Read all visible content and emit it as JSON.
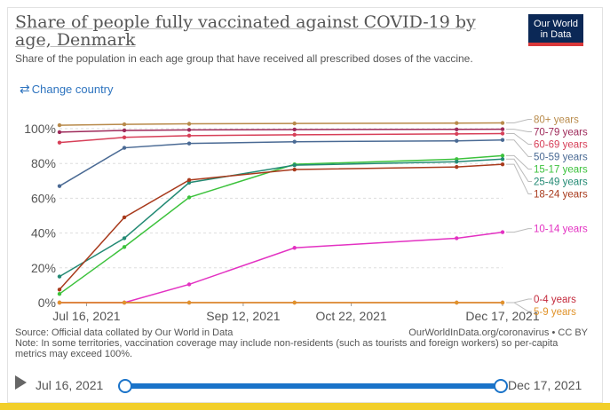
{
  "header": {
    "title": "Share of people fully vaccinated against COVID-19 by age, Denmark",
    "subtitle": "Share of the population in each age group that have received all prescribed doses of the vaccine.",
    "logo_line1": "Our World",
    "logo_line2": "in Data",
    "logo_color": "#0b2856",
    "logo_accent": "#d9383a"
  },
  "controls": {
    "change_country_icon": "swap-arrows-icon",
    "change_country_label": "Change country"
  },
  "chart_data": {
    "type": "line",
    "x": [
      "2021-07-06",
      "2021-07-30",
      "2021-08-23",
      "2021-10-01",
      "2021-11-30",
      "2021-12-17"
    ],
    "x_tick_labels": [
      {
        "date": "2021-07-16",
        "label": "Jul 16, 2021"
      },
      {
        "date": "2021-09-12",
        "label": "Sep 12, 2021"
      },
      {
        "date": "2021-10-22",
        "label": "Oct 22, 2021"
      },
      {
        "date": "2021-12-17",
        "label": "Dec 17, 2021"
      }
    ],
    "y_ticks": [
      "0%",
      "20%",
      "40%",
      "60%",
      "80%",
      "100%"
    ],
    "ylim": [
      0,
      100
    ],
    "grid": "horizontal dashed",
    "legend": "right, end-of-line labels",
    "series": [
      {
        "name": "80+ years",
        "color": "#b88a4a",
        "values": [
          102,
          102.5,
          102.8,
          103,
          103.2,
          103.3
        ]
      },
      {
        "name": "70-79 years",
        "color": "#9e2a5a",
        "values": [
          98,
          99,
          99.3,
          99.5,
          99.6,
          99.7
        ]
      },
      {
        "name": "60-69 years",
        "color": "#d73f58",
        "values": [
          92,
          95,
          96,
          96.5,
          97,
          97.2
        ]
      },
      {
        "name": "50-59 years",
        "color": "#4a6a94",
        "values": [
          67,
          89,
          91.5,
          92.5,
          93,
          93.5
        ]
      },
      {
        "name": "15-17 years",
        "color": "#3cc23c",
        "values": [
          5,
          32,
          60.5,
          79.5,
          82.5,
          84.5
        ]
      },
      {
        "name": "25-49 years",
        "color": "#238a74",
        "values": [
          15,
          37,
          69,
          79,
          81,
          82.5
        ]
      },
      {
        "name": "18-24 years",
        "color": "#a83a1c",
        "values": [
          7.5,
          49,
          70.5,
          76.5,
          78,
          79.5
        ]
      },
      {
        "name": "10-14 years",
        "color": "#e331c2",
        "values": [
          0,
          0,
          10.5,
          31.5,
          37,
          40.5
        ]
      },
      {
        "name": "0-4 years",
        "color": "#c42a3c",
        "values": [
          0,
          0,
          0,
          0,
          0,
          0
        ]
      },
      {
        "name": "5-9 years",
        "color": "#e0932a",
        "values": [
          0,
          0,
          0,
          0,
          0,
          0
        ]
      }
    ]
  },
  "footer": {
    "source": "Source: Official data collated by Our World in Data",
    "url": "OurWorldInData.org/coronavirus • CC BY",
    "note": "Note: In some territories, vaccination coverage may include non-residents (such as tourists and foreign workers) so per-capita metrics may exceed 100%."
  },
  "timeline": {
    "play_icon": "play-icon",
    "start_label": "Jul 16, 2021",
    "end_label": "Dec 17, 2021",
    "accent": "#1a73c9"
  }
}
